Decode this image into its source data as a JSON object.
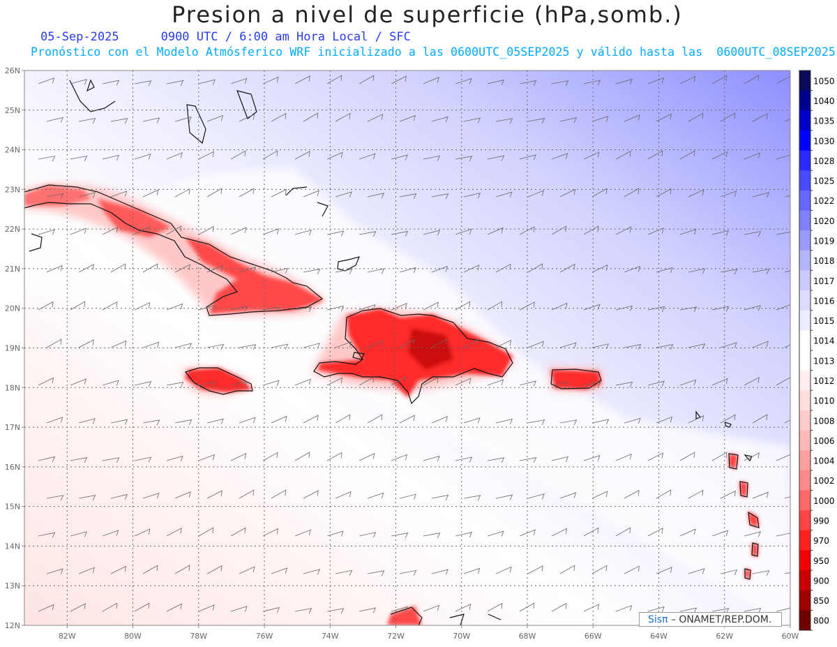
{
  "title": "Presion a nivel de superficie (hPa,somb.)",
  "date": "05-Sep-2025",
  "valid_time": "0900 UTC / 6:00 am Hora Local / SFC",
  "forecast_line": "Pronóstico con el Modelo Atmósferico WRF inicializado a las 0600UTC_05SEP2025 y válido hasta las  0600UTC_08SEP2025",
  "credit": {
    "brand": "Sisπ",
    "text": "– ONAMET/REP.DOM."
  },
  "map": {
    "lon_range": [
      -83.3,
      -60.0
    ],
    "lat_range": [
      12.0,
      26.0
    ],
    "lon_ticks": [
      "82W",
      "80W",
      "78W",
      "76W",
      "74W",
      "72W",
      "70W",
      "68W",
      "66W",
      "64W",
      "62W",
      "60W"
    ],
    "lat_ticks": [
      "12N",
      "13N",
      "14N",
      "15N",
      "16N",
      "17N",
      "18N",
      "19N",
      "20N",
      "21N",
      "22N",
      "23N",
      "24N",
      "25N",
      "26N"
    ],
    "grid": true
  },
  "colorbar": {
    "labels": [
      "1050",
      "1040",
      "1035",
      "1030",
      "1028",
      "1025",
      "1022",
      "1020",
      "1019",
      "1018",
      "1017",
      "1016",
      "1015",
      "1014",
      "1013",
      "1012",
      "1010",
      "1008",
      "1006",
      "1004",
      "1002",
      "1000",
      "990",
      "970",
      "950",
      "900",
      "850",
      "800"
    ],
    "colors": [
      "#0a0a5a",
      "#000090",
      "#0000c8",
      "#0000ff",
      "#2a2aff",
      "#4a4aff",
      "#6565ff",
      "#8080ff",
      "#9a9aff",
      "#b4b4ff",
      "#cacaff",
      "#dcdcff",
      "#ececff",
      "#ffffff",
      "#ffffff",
      "#ffeeee",
      "#ffdede",
      "#ffcccc",
      "#ffb8b8",
      "#ffa0a0",
      "#ff8888",
      "#ff6868",
      "#ff4444",
      "#ff2020",
      "#f00000",
      "#cc0000",
      "#a00000",
      "#700000"
    ]
  }
}
